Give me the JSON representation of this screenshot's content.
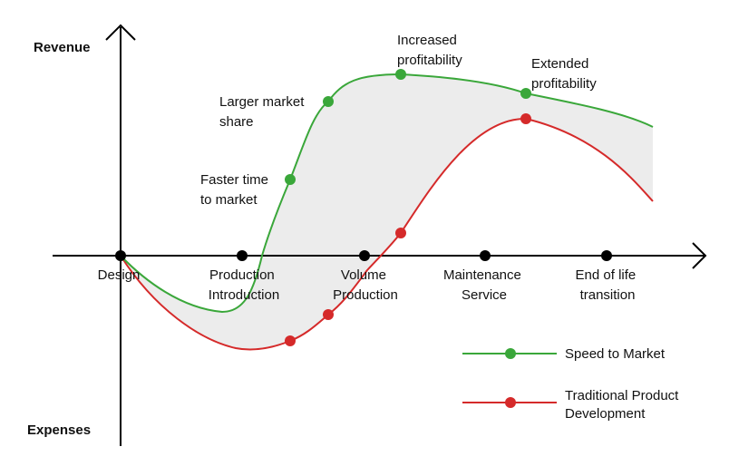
{
  "axes": {
    "y_top_label": "Revenue",
    "y_bottom_label": "Expenses"
  },
  "stages": [
    {
      "lines": [
        "Design"
      ]
    },
    {
      "lines": [
        "Production",
        "Introduction"
      ]
    },
    {
      "lines": [
        "Volume",
        "Production"
      ]
    },
    {
      "lines": [
        "Maintenance",
        "Service"
      ]
    },
    {
      "lines": [
        "End of life",
        "transition"
      ]
    }
  ],
  "annotations": [
    {
      "lines": [
        "Faster time",
        "to market"
      ]
    },
    {
      "lines": [
        "Larger market",
        "share"
      ]
    },
    {
      "lines": [
        "Increased",
        "profitability"
      ]
    },
    {
      "lines": [
        "Extended",
        "profitability"
      ]
    }
  ],
  "legend": {
    "speed": {
      "label": "Speed to Market",
      "color": "#3aa73a"
    },
    "traditional": {
      "lines": [
        "Traditional Product",
        "Development"
      ],
      "color": "#d52a2a"
    }
  },
  "colors": {
    "axis": "#000000",
    "gap_fill": "#ececec",
    "speed_line": "#3aa73a",
    "traditional_line": "#d52a2a"
  }
}
